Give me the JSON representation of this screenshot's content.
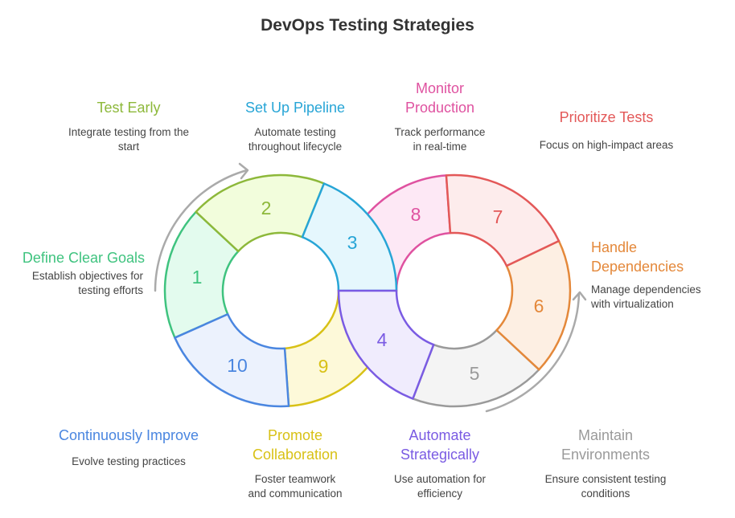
{
  "title": "DevOps Testing Strategies",
  "steps": [
    {
      "num": "1",
      "title": "Define Clear Goals",
      "desc": [
        "Establish objectives for",
        "testing efforts"
      ],
      "color": "#3fc37f",
      "fill": "#e3fbee"
    },
    {
      "num": "2",
      "title": "Test Early",
      "desc": [
        "Integrate testing from the",
        "start"
      ],
      "color": "#8db83a",
      "fill": "#f2fddc"
    },
    {
      "num": "3",
      "title": "Set Up Pipeline",
      "desc": [
        "Automate testing",
        "throughout lifecycle"
      ],
      "color": "#27a5d6",
      "fill": "#e5f7fd"
    },
    {
      "num": "4",
      "title": "Automate Strategically",
      "title_lines": [
        "Automate",
        "Strategically"
      ],
      "desc": [
        "Use automation for",
        "efficiency"
      ],
      "color": "#7a5be3",
      "fill": "#f0ecfd"
    },
    {
      "num": "5",
      "title": "Maintain Environments",
      "title_lines": [
        "Maintain",
        "Environments"
      ],
      "desc": [
        "Ensure consistent testing",
        "conditions"
      ],
      "color": "#9a9a9a",
      "fill": "#f4f4f4"
    },
    {
      "num": "6",
      "title": "Handle Dependencies",
      "title_lines": [
        "Handle",
        "Dependencies"
      ],
      "desc": [
        "Manage dependencies",
        "with virtualization"
      ],
      "color": "#e4883a",
      "fill": "#fdefe3"
    },
    {
      "num": "7",
      "title": "Prioritize Tests",
      "desc": [
        "Focus on high-impact areas"
      ],
      "color": "#e35858",
      "fill": "#fdecec"
    },
    {
      "num": "8",
      "title": "Monitor Production",
      "title_lines": [
        "Monitor",
        "Production"
      ],
      "desc": [
        "Track performance",
        "in real-time"
      ],
      "color": "#df52a0",
      "fill": "#fde8f5"
    },
    {
      "num": "9",
      "title": "Promote Collaboration",
      "title_lines": [
        "Promote",
        "Collaboration"
      ],
      "desc": [
        "Foster teamwork",
        "and communication"
      ],
      "color": "#d8c116",
      "fill": "#fdf9d9"
    },
    {
      "num": "10",
      "title": "Continuously Improve",
      "desc": [
        "Evolve testing practices"
      ],
      "color": "#4a86e0",
      "fill": "#ecf2fd"
    }
  ],
  "arrow_color": "#aaaaaa"
}
